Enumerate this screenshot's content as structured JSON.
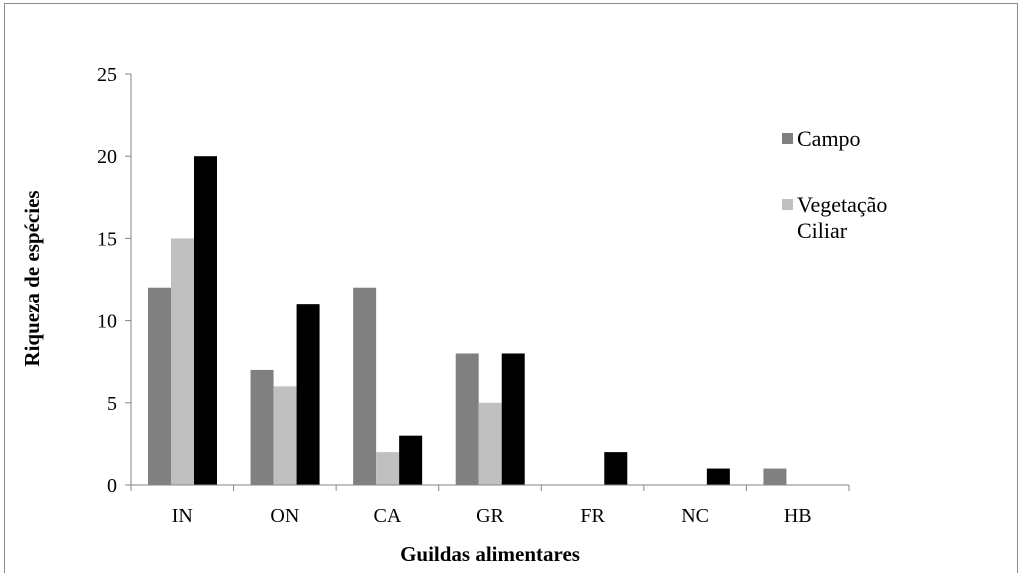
{
  "chart_data": {
    "type": "bar",
    "xlabel": "Guildas alimentares",
    "ylabel": "Riqueza de espécies",
    "ylim": [
      0,
      25
    ],
    "y_ticks": [
      "0",
      "5",
      "10",
      "15",
      "20",
      "25"
    ],
    "categories": [
      "IN",
      "ON",
      "CA",
      "GR",
      "FR",
      "NC",
      "HB"
    ],
    "series": [
      {
        "name": "Campo",
        "color": "#808080",
        "values": [
          12,
          7,
          12,
          8,
          0,
          0,
          1
        ]
      },
      {
        "name": "Vegetação Ciliar",
        "color": "#c0c0c0",
        "values": [
          15,
          6,
          2,
          5,
          0,
          0,
          0
        ]
      },
      {
        "name": "",
        "color": "#000000",
        "values": [
          20,
          11,
          3,
          8,
          2,
          1,
          0
        ]
      }
    ],
    "legend": {
      "position": "right",
      "entries": [
        {
          "lines": [
            "Campo"
          ],
          "color": "#808080"
        },
        {
          "lines": [
            "Vegetação",
            "Ciliar"
          ],
          "color": "#c0c0c0"
        }
      ]
    },
    "grid": false
  }
}
